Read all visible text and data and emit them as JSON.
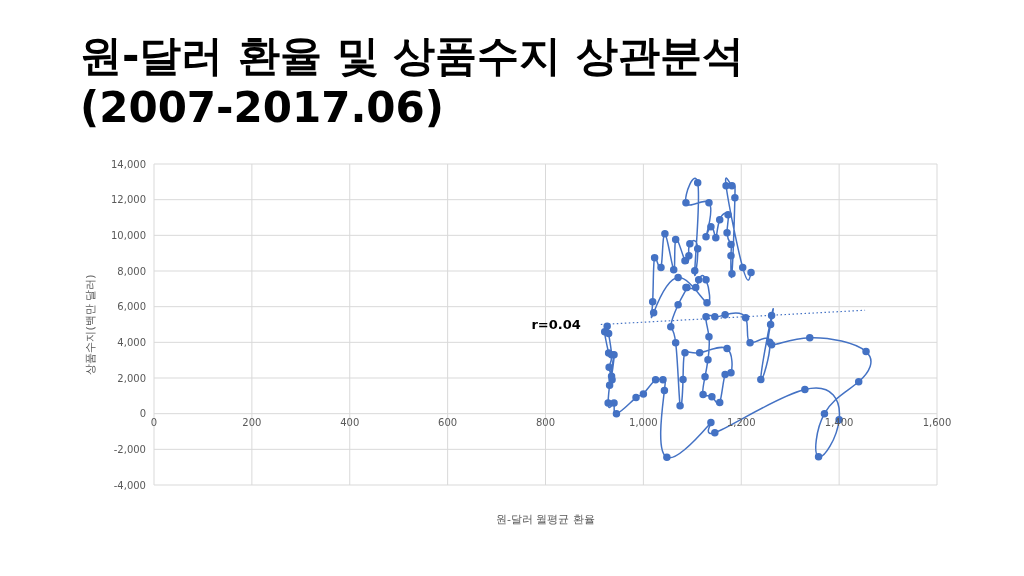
{
  "chart_data": {
    "type": "line",
    "title": "원-달러 환율 및 상품수지 상관분석\n(2007-2017.06)",
    "xlabel": "원-달러 월평균 환율",
    "ylabel": "상품수지(백만 달러)",
    "xlim": [
      0,
      1600
    ],
    "xticks": [
      {
        "value": 0,
        "label": "0"
      },
      {
        "value": 200,
        "label": "200"
      },
      {
        "value": 400,
        "label": "400"
      },
      {
        "value": 600,
        "label": "600"
      },
      {
        "value": 800,
        "label": "800"
      },
      {
        "value": 1000,
        "label": "1,000"
      },
      {
        "value": 1200,
        "label": "1,200"
      },
      {
        "value": 1400,
        "label": "1,400"
      },
      {
        "value": 1600,
        "label": "1,600"
      }
    ],
    "ylim": [
      -4000,
      14000
    ],
    "yticks": [
      {
        "value": -4000,
        "label": "-4,000"
      },
      {
        "value": -2000,
        "label": "-2,000"
      },
      {
        "value": 0,
        "label": "0"
      },
      {
        "value": 2000,
        "label": "2,000"
      },
      {
        "value": 4000,
        "label": "4,000"
      },
      {
        "value": 6000,
        "label": "6,000"
      },
      {
        "value": 8000,
        "label": "8,000"
      },
      {
        "value": 10000,
        "label": "10,000"
      },
      {
        "value": 12000,
        "label": "12,000"
      },
      {
        "value": 14000,
        "label": "14,000"
      }
    ],
    "grid": true,
    "marker": "circle",
    "series": [
      {
        "color": "#4472c4",
        "line_style": "solid",
        "x": [
          929,
          921,
          929,
          926,
          935,
          930,
          936,
          931,
          935,
          940,
          928,
          940,
          945,
          985,
          1000,
          1025,
          1040,
          1043,
          1048,
          1138,
          1146,
          1330,
          1400,
          1358,
          1370,
          1440,
          1455,
          1340,
          1262,
          1260,
          1262,
          1240,
          1258,
          1218,
          1209,
          1167,
          1146,
          1128,
          1134,
          1132,
          1126,
          1122,
          1140,
          1156,
          1167,
          1179,
          1171,
          1115,
          1085,
          1081,
          1075,
          1066,
          1056,
          1071,
          1089,
          1087,
          1107,
          1113,
          1128,
          1130,
          1071,
          1021,
          1019,
          1023,
          1036,
          1044,
          1062,
          1066,
          1085,
          1093,
          1095,
          1111,
          1105,
          1111,
          1087,
          1134,
          1128,
          1138,
          1148,
          1156,
          1173,
          1171,
          1179,
          1179,
          1181,
          1187,
          1181,
          1169,
          1203,
          1220
        ],
        "values": [
          3400,
          4600,
          4500,
          4900,
          3300,
          2600,
          1900,
          1600,
          2100,
          3300,
          600,
          600,
          0,
          900,
          1100,
          1900,
          1900,
          1300,
          -2450,
          -500,
          -1070,
          1350,
          -340,
          -2410,
          0,
          1790,
          3480,
          4260,
          3870,
          5000,
          5500,
          1910,
          4000,
          3980,
          5380,
          5550,
          5440,
          5440,
          4320,
          3030,
          2070,
          1070,
          950,
          620,
          2190,
          2300,
          3650,
          3420,
          3420,
          1910,
          450,
          3980,
          4880,
          6110,
          7070,
          7070,
          7070,
          7510,
          7510,
          6220,
          7630,
          5660,
          6280,
          8750,
          8190,
          10090,
          8070,
          9760,
          8580,
          8860,
          9530,
          9250,
          8020,
          12950,
          11830,
          11830,
          9920,
          10480,
          9870,
          10880,
          11160,
          10150,
          9480,
          8860,
          7850,
          12110,
          12780,
          12780,
          8190,
          7910
        ]
      },
      {
        "type": "line",
        "color": "#4472c4",
        "line_style": "dotted",
        "marker": "none",
        "x": [
          913,
          1453
        ],
        "values": [
          5000,
          5800
        ]
      }
    ],
    "annotations": [
      {
        "text": "r=0.04",
        "x": 913,
        "y": 5000
      }
    ]
  }
}
